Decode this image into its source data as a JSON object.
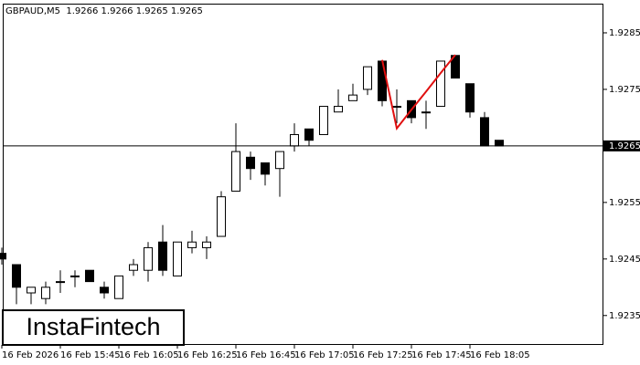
{
  "chart_data": {
    "type": "candlestick",
    "title": "GBPAUD,M5  1.9266 1.9266 1.9265 1.9265",
    "watermark": "InstaFintech",
    "categories": [
      "16 Feb 2026",
      null,
      null,
      null,
      "16 Feb 15:45",
      null,
      null,
      null,
      "16 Feb 16:05",
      null,
      null,
      null,
      "16 Feb 16:25",
      null,
      null,
      null,
      "16 Feb 16:45",
      null,
      null,
      null,
      "16 Feb 17:05",
      null,
      null,
      null,
      "16 Feb 17:25",
      null,
      null,
      null,
      "16 Feb 17:45",
      null,
      null,
      null,
      "16 Feb 18:05",
      null,
      null
    ],
    "open": [
      1.9246,
      1.9244,
      1.9239,
      1.9238,
      1.9241,
      1.9242,
      1.9243,
      1.924,
      1.9238,
      1.9243,
      1.9243,
      1.9248,
      1.9242,
      1.9247,
      1.9247,
      1.9249,
      1.9257,
      1.9263,
      1.9262,
      1.9261,
      1.9265,
      1.9268,
      1.9267,
      1.9271,
      1.9273,
      1.9275,
      1.928,
      1.9272,
      1.9273,
      1.9271,
      1.9272,
      1.9281,
      1.9276,
      1.927,
      1.9266
    ],
    "high": [
      1.9247,
      1.9244,
      1.924,
      1.9241,
      1.9243,
      1.9243,
      1.9243,
      1.9241,
      1.9242,
      1.9245,
      1.9248,
      1.9251,
      1.9248,
      1.925,
      1.9249,
      1.9257,
      1.9269,
      1.9264,
      1.9262,
      1.9264,
      1.9269,
      1.9268,
      1.9272,
      1.9275,
      1.9276,
      1.9279,
      1.928,
      1.9275,
      1.9273,
      1.9273,
      1.928,
      1.9281,
      1.9276,
      1.9271,
      1.9266
    ],
    "low": [
      1.9244,
      1.9237,
      1.9237,
      1.9237,
      1.9239,
      1.924,
      1.9241,
      1.9238,
      1.9238,
      1.9242,
      1.9241,
      1.9242,
      1.9242,
      1.9246,
      1.9245,
      1.9249,
      1.9257,
      1.9259,
      1.9258,
      1.9256,
      1.9264,
      1.9265,
      1.9267,
      1.9271,
      1.9273,
      1.9274,
      1.9272,
      1.9269,
      1.9269,
      1.9268,
      1.9272,
      1.9277,
      1.927,
      1.9265,
      1.9265
    ],
    "close": [
      1.9245,
      1.924,
      1.924,
      1.924,
      1.9241,
      1.9242,
      1.9241,
      1.9239,
      1.9242,
      1.9244,
      1.9247,
      1.9243,
      1.9248,
      1.9248,
      1.9248,
      1.9256,
      1.9264,
      1.9261,
      1.926,
      1.9264,
      1.9267,
      1.9266,
      1.9272,
      1.9272,
      1.9274,
      1.9279,
      1.9273,
      1.9272,
      1.927,
      1.9271,
      1.928,
      1.9277,
      1.9271,
      1.9265,
      1.9265
    ],
    "up_color": "#ffffff",
    "down_color": "#000000",
    "pattern": {
      "color": "#e01010",
      "values": [
        null,
        null,
        null,
        null,
        null,
        null,
        null,
        null,
        null,
        null,
        null,
        null,
        null,
        null,
        null,
        null,
        null,
        null,
        null,
        null,
        null,
        null,
        null,
        null,
        null,
        null,
        1.92802,
        1.92681,
        1.92714,
        1.92746,
        1.92779,
        1.92811,
        null,
        null,
        null
      ]
    },
    "last_price": 1.9265,
    "ylim": [
      1.92298,
      1.929
    ],
    "yticks": [
      1.9235,
      1.9245,
      1.9255,
      1.9265,
      1.9275,
      1.9285
    ],
    "grid": false
  }
}
